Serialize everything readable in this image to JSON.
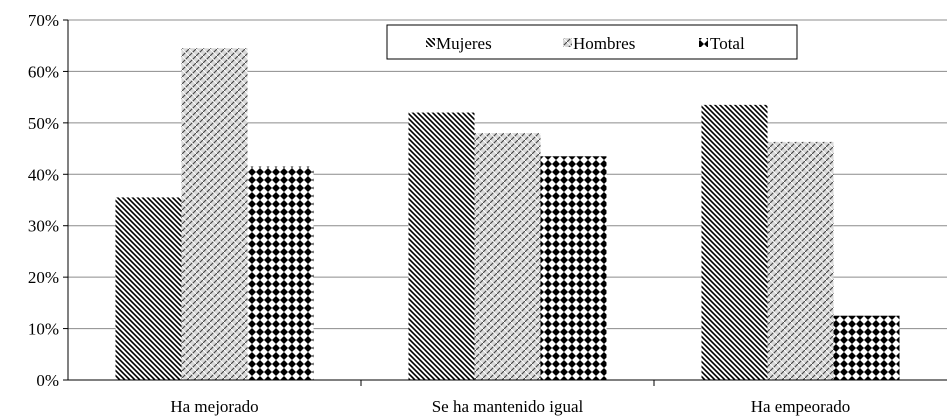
{
  "chart_data": {
    "type": "bar",
    "categories": [
      "Ha mejorado",
      "Se ha mantenido igual",
      "Ha empeorado"
    ],
    "series": [
      {
        "name": "Mujeres",
        "values": [
          35.5,
          52.0,
          53.5
        ]
      },
      {
        "name": "Hombres",
        "values": [
          64.5,
          48.0,
          46.3
        ]
      },
      {
        "name": "Total",
        "values": [
          41.5,
          43.5,
          12.5
        ]
      }
    ],
    "ylim": [
      0,
      70
    ],
    "ytick_values": [
      0,
      10,
      20,
      30,
      40,
      50,
      60,
      70
    ],
    "ytick_labels": [
      "0%",
      "10%",
      "20%",
      "30%",
      "40%",
      "50%",
      "60%",
      "70%"
    ],
    "grid": true,
    "legend_position": "top-right",
    "colors": {
      "ink": "#000000",
      "fill": "#ffffff",
      "grid": "#8c8c8c"
    }
  }
}
